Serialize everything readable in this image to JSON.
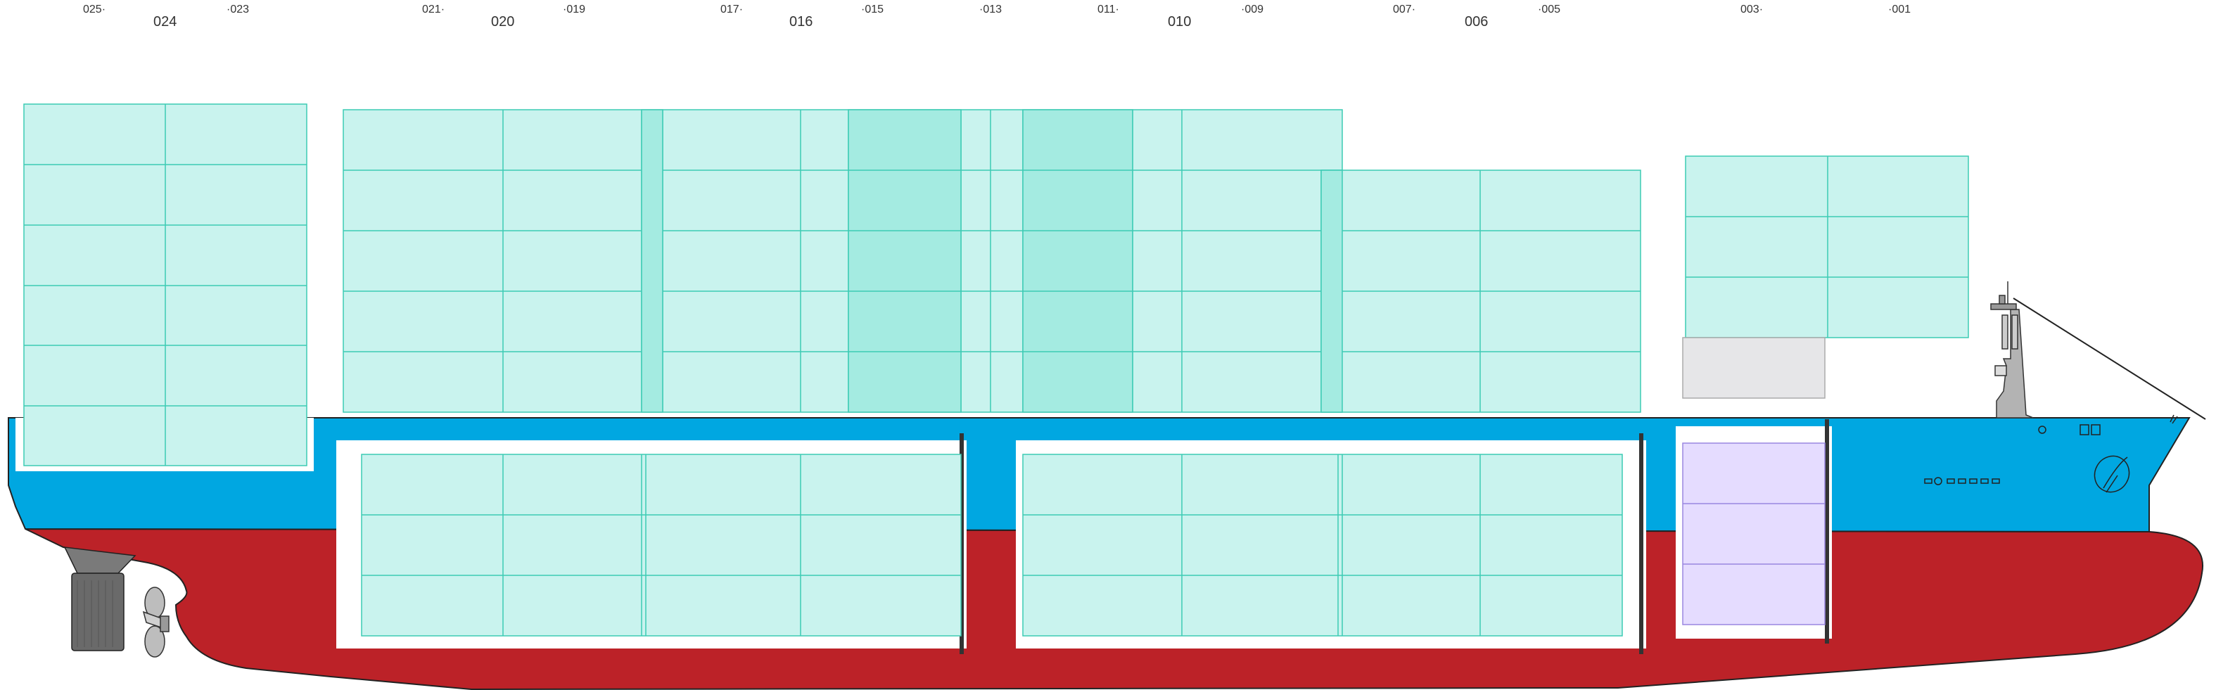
{
  "bay_labels": {
    "b025": "025·",
    "b024": "024",
    "b023": "·023",
    "b021": "021·",
    "b020": "020",
    "b019": "·019",
    "b017": "017·",
    "b016": "016",
    "b015": "·015",
    "b013": "·013",
    "b011": "011·",
    "b010": "010",
    "b009": "·009",
    "b007": "007·",
    "b006": "006",
    "b005": "·005",
    "b003": "003·",
    "b001": "·001"
  },
  "colors": {
    "container_fill": "#c9f3ee",
    "container_stroke": "#3ccbb4",
    "container_dark_fill": "#a4ebe1",
    "reefer_fill": "#e5dcff",
    "reefer_stroke": "#9a86e0",
    "hull_blue": "#00a7e1",
    "hull_red": "#bc2228",
    "empty_slot": "#e6e6e8"
  },
  "icons": {
    "funnel": "maersk-star-icon",
    "propeller": "propeller-icon",
    "rudder": "rudder-icon",
    "bridge": "bridge-mast-icon"
  }
}
